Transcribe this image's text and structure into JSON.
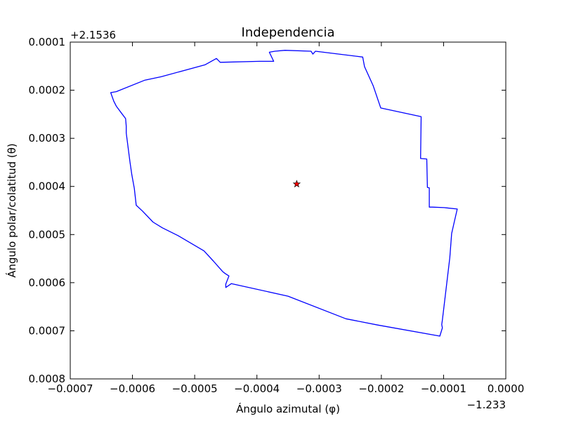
{
  "chart_data": {
    "type": "line",
    "title": "Independencia",
    "xlabel": "Ángulo azimutal (φ)",
    "ylabel": "Ángulo polar/colatitud (θ)",
    "x_offset_label": "−1.233",
    "y_offset_label": "+2.1536",
    "xlim": [
      -0.0007,
      0.0
    ],
    "ylim": [
      0.0008,
      0.0001
    ],
    "y_inverted": true,
    "grid": false,
    "x_ticks": [
      -0.0007,
      -0.0006,
      -0.0005,
      -0.0004,
      -0.0003,
      -0.0002,
      -0.0001,
      0.0
    ],
    "x_tick_labels": [
      "−0.0007",
      "−0.0006",
      "−0.0005",
      "−0.0004",
      "−0.0003",
      "−0.0002",
      "−0.0001",
      "0.0000"
    ],
    "y_ticks": [
      0.0001,
      0.0002,
      0.0003,
      0.0004,
      0.0005,
      0.0006,
      0.0007,
      0.0008
    ],
    "y_tick_labels": [
      "0.0001",
      "0.0002",
      "0.0003",
      "0.0004",
      "0.0005",
      "0.0006",
      "0.0007",
      "0.0008"
    ],
    "series": [
      {
        "kind": "polygon",
        "color": "#0000ff",
        "x": [
          -0.000371,
          -0.000355,
          -0.000313,
          -0.00031,
          -0.000306,
          -0.00023,
          -0.000227,
          -0.000213,
          -0.000201,
          -0.000136,
          -0.000137,
          -0.000127,
          -0.000126,
          -0.000123,
          -0.000123,
          -0.000118,
          -9.9e-05,
          -7.8e-05,
          -8.2e-05,
          -8.7e-05,
          -9e-05,
          -0.000102,
          -0.000103,
          -0.000102,
          -0.000106,
          -0.000206,
          -0.000257,
          -0.00035,
          -0.000441,
          -0.00045,
          -0.00045,
          -0.000445,
          -0.000451,
          -0.000455,
          -0.00047,
          -0.000485,
          -0.000527,
          -0.000552,
          -0.000567,
          -0.000584,
          -0.000594,
          -0.000597,
          -0.000601,
          -0.000604,
          -0.00061,
          -0.00061,
          -0.000611,
          -0.000618,
          -0.000626,
          -0.00063,
          -0.000635,
          -0.000626,
          -0.00058,
          -0.000554,
          -0.000483,
          -0.000465,
          -0.000459,
          -0.000396,
          -0.000373,
          -0.00038
        ],
        "y": [
          0.000119,
          0.000117,
          0.000119,
          0.000125,
          0.000119,
          0.000131,
          0.000151,
          0.000191,
          0.000237,
          0.000255,
          0.000342,
          0.000343,
          0.000402,
          0.000403,
          0.000443,
          0.000443,
          0.000444,
          0.000447,
          0.000469,
          0.000498,
          0.000548,
          0.000678,
          0.000687,
          0.000694,
          0.000711,
          0.000688,
          0.000675,
          0.000628,
          0.000602,
          0.00061,
          0.000603,
          0.000586,
          0.000581,
          0.000577,
          0.000555,
          0.000534,
          0.000502,
          0.000486,
          0.000474,
          0.000451,
          0.000439,
          0.000404,
          0.000376,
          0.000349,
          0.000289,
          0.000275,
          0.000259,
          0.000247,
          0.000233,
          0.000223,
          0.000205,
          0.000203,
          0.000179,
          0.000172,
          0.000147,
          0.000134,
          0.000142,
          0.00014,
          0.00014,
          0.000121
        ]
      },
      {
        "kind": "marker",
        "marker": "star",
        "color": "#ff0000",
        "edge_color": "#000000",
        "x": [
          -0.000336
        ],
        "y": [
          0.000395
        ]
      }
    ]
  }
}
